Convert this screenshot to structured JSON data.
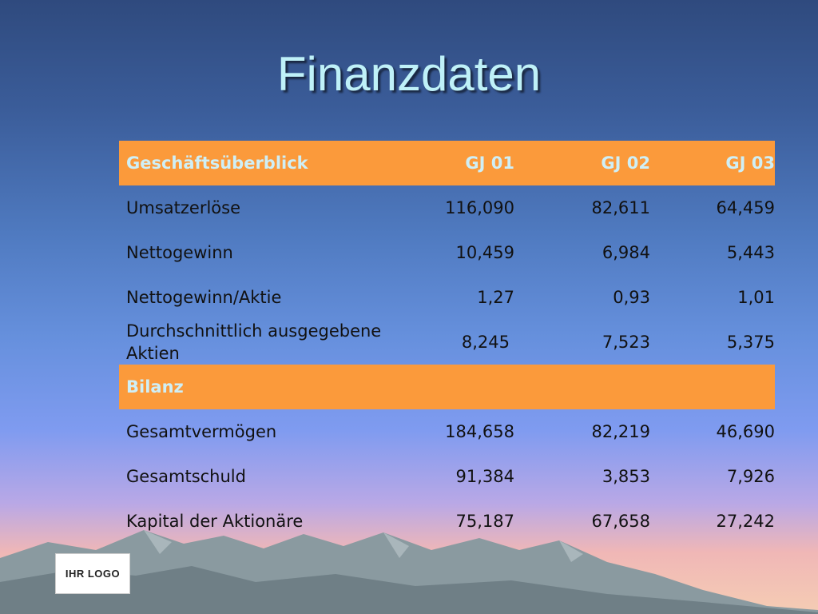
{
  "title": "Finanzdaten",
  "table": {
    "header": {
      "label": "Geschäftsüberblick",
      "cols": [
        "GJ 01",
        "GJ 02",
        "GJ 03"
      ]
    },
    "rows": [
      {
        "label": "Umsatzerlöse",
        "values": [
          "116,090",
          "82,611",
          "64,459"
        ]
      },
      {
        "label": "Nettogewinn",
        "values": [
          "10,459",
          "6,984",
          "5,443"
        ]
      },
      {
        "label": "Nettogewinn/Aktie",
        "values": [
          "1,27",
          "0,93",
          "1,01"
        ]
      },
      {
        "label": "Durchschnittlich ausgegebene Aktien",
        "values": [
          "8,245",
          "7,523",
          "5,375"
        ]
      }
    ],
    "section2": {
      "label": "Bilanz"
    },
    "rows2": [
      {
        "label": "Gesamtvermögen",
        "values": [
          "184,658",
          "82,219",
          "46,690"
        ]
      },
      {
        "label": "Gesamtschuld",
        "values": [
          "91,384",
          "3,853",
          "7,926"
        ]
      },
      {
        "label": "Kapital der Aktionäre",
        "values": [
          "75,187",
          "67,658",
          "27,242"
        ]
      }
    ]
  },
  "logo": {
    "text": "IHR LOGO"
  },
  "colors": {
    "header_fill": "#fb9a3b",
    "header_text": "#cfeff6",
    "title": "#bff1f8"
  }
}
